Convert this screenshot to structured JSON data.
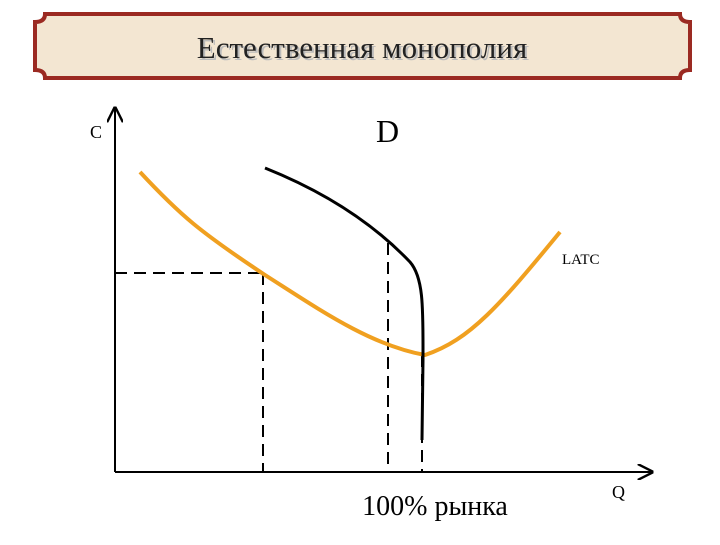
{
  "header": {
    "title": "Естественная монополия"
  },
  "axes": {
    "y_label": "C",
    "x_label": "Q"
  },
  "labels": {
    "demand": "D",
    "cost": "LATC",
    "market": "100% рынка"
  }
}
